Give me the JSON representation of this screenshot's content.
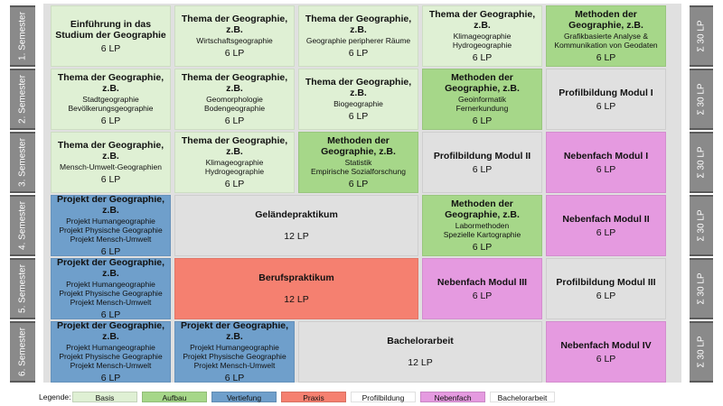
{
  "semesters": [
    "1. Semester",
    "2. Semester",
    "3. Semester",
    "4. Semester",
    "5. Semester",
    "6. Semester"
  ],
  "sum_label": "Σ 30 LP",
  "colors": {
    "basis": "#dff0d4",
    "aufbau": "#a6d789",
    "vertiefung": "#6f9fcb",
    "praxis": "#f58070",
    "profilbildung": "#c0d7ec",
    "nebenfach": "#e59ae0",
    "bachelorarbeit": "#fbd7b0"
  },
  "rows": [
    [
      {
        "title": "Einführung in das\nStudium der Geographie",
        "sub": "",
        "lp": "6 LP",
        "type": "basis",
        "span": 1
      },
      {
        "title": "Thema der Geographie,\nz.B.",
        "sub": "Wirtschaftsgeographie",
        "lp": "6 LP",
        "type": "basis",
        "span": 1
      },
      {
        "title": "Thema der Geographie,\nz.B.",
        "sub": "Geographie peripherer Räume",
        "lp": "6 LP",
        "type": "basis",
        "span": 1
      },
      {
        "title": "Thema der Geographie,\nz.B.",
        "sub": "Klimageographie\nHydrogeographie",
        "lp": "6 LP",
        "type": "basis",
        "span": 1
      },
      {
        "title": "Methoden der\nGeographie, z.B.",
        "sub": "Grafikbasierte Analyse &\nKommunikation von Geodaten",
        "lp": "6 LP",
        "type": "aufbau",
        "span": 1
      }
    ],
    [
      {
        "title": "Thema der Geographie,\nz.B.",
        "sub": "Stadtgeographie\nBevölkerungsgeographie",
        "lp": "6 LP",
        "type": "basis",
        "span": 1
      },
      {
        "title": "Thema der Geographie,\nz.B.",
        "sub": "Geomorphologie\nBodengeographie",
        "lp": "6 LP",
        "type": "basis",
        "span": 1
      },
      {
        "title": "Thema der Geographie,\nz.B.",
        "sub": "Biogeographie",
        "lp": "6 LP",
        "type": "basis",
        "span": 1
      },
      {
        "title": "Methoden der\nGeographie, z.B.",
        "sub": "Geoinformatik\nFernerkundung",
        "lp": "6 LP",
        "type": "aufbau",
        "span": 1
      },
      {
        "title": "Profilbildung Modul I",
        "sub": "",
        "lp": "6 LP",
        "type": "profilbildung",
        "span": 1
      }
    ],
    [
      {
        "title": "Thema der Geographie,\nz.B.",
        "sub": "Mensch-Umwelt-Geographien",
        "lp": "6 LP",
        "type": "basis",
        "span": 1
      },
      {
        "title": "Thema der Geographie,\nz.B.",
        "sub": "Klimageographie\nHydrogeographie",
        "lp": "6 LP",
        "type": "basis",
        "span": 1
      },
      {
        "title": "Methoden der\nGeographie, z.B.",
        "sub": "Statistik\nEmpirische Sozialforschung",
        "lp": "6 LP",
        "type": "aufbau",
        "span": 1
      },
      {
        "title": "Profilbildung Modul II",
        "sub": "",
        "lp": "6 LP",
        "type": "profilbildung",
        "span": 1
      },
      {
        "title": "Nebenfach Modul I",
        "sub": "",
        "lp": "6 LP",
        "type": "nebenfach",
        "span": 1
      }
    ],
    [
      {
        "title": "Projekt der Geographie,\nz.B.",
        "sub": "Projekt Humangeographie\nProjekt Physische Geographie\nProjekt Mensch-Umwelt",
        "lp": "6 LP",
        "type": "vertiefung",
        "span": 1
      },
      {
        "title": "Geländepraktikum",
        "sub": "",
        "lp": "12 LP",
        "type": "profilbildung",
        "span": 2,
        "big": true
      },
      {
        "title": "Methoden der\nGeographie, z.B.",
        "sub": "Labormethoden\nSpezielle Kartographie",
        "lp": "6 LP",
        "type": "aufbau",
        "span": 1
      },
      {
        "title": "Nebenfach Modul II",
        "sub": "",
        "lp": "6 LP",
        "type": "nebenfach",
        "span": 1
      }
    ],
    [
      {
        "title": "Projekt der Geographie,\nz.B.",
        "sub": "Projekt Humangeographie\nProjekt Physische Geographie\nProjekt Mensch-Umwelt",
        "lp": "6 LP",
        "type": "vertiefung",
        "span": 1
      },
      {
        "title": "Berufspraktikum",
        "sub": "",
        "lp": "12 LP",
        "type": "praxis",
        "span": 2,
        "big": true
      },
      {
        "title": "Nebenfach Modul III",
        "sub": "",
        "lp": "6 LP",
        "type": "nebenfach",
        "span": 1
      },
      {
        "title": "Profilbildung Modul III",
        "sub": "",
        "lp": "6 LP",
        "type": "profilbildung",
        "span": 1
      }
    ],
    [
      {
        "title": "Projekt der Geographie,\nz.B.",
        "sub": "Projekt Humangeographie\nProjekt Physische Geographie\nProjekt Mensch-Umwelt",
        "lp": "6 LP",
        "type": "vertiefung",
        "span": 1
      },
      {
        "title": "Projekt der Geographie,\nz.B.",
        "sub": "Projekt Humangeographie\nProjekt Physische Geographie\nProjekt Mensch-Umwelt",
        "lp": "6 LP",
        "type": "vertiefung",
        "span": 1
      },
      {
        "title": "Bachelorarbeit",
        "sub": "",
        "lp": "12 LP",
        "type": "bachelorarbeit",
        "span": 2,
        "big": true
      },
      {
        "title": "Nebenfach Modul IV",
        "sub": "",
        "lp": "6 LP",
        "type": "nebenfach",
        "span": 1
      }
    ]
  ],
  "legend": {
    "label": "Legende:",
    "items": [
      {
        "label": "Basis",
        "type": "basis"
      },
      {
        "label": "Aufbau",
        "type": "aufbau"
      },
      {
        "label": "Vertiefung",
        "type": "vertiefung"
      },
      {
        "label": "Praxis",
        "type": "praxis"
      },
      {
        "label": "Profilbildung",
        "type": "profilbildung"
      },
      {
        "label": "Nebenfach",
        "type": "nebenfach"
      },
      {
        "label": "Bachelorarbeit",
        "type": "bachelorarbeit"
      }
    ]
  }
}
